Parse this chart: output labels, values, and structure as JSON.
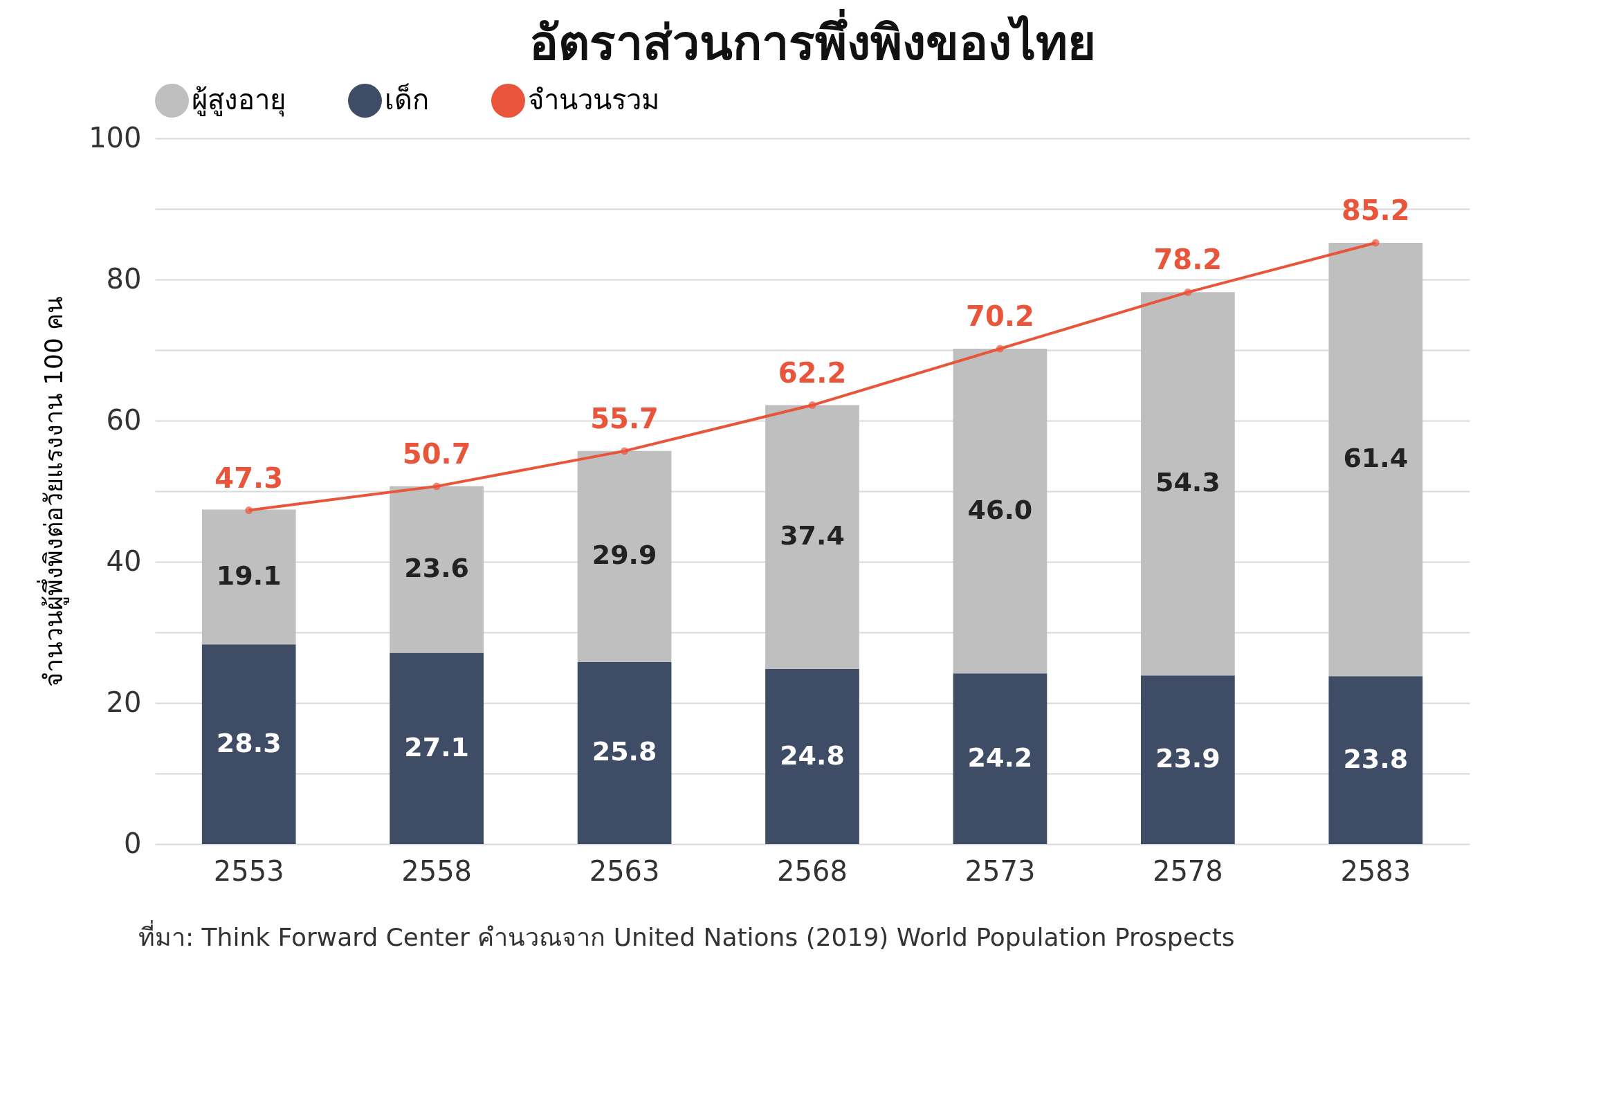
{
  "chart_data": {
    "type": "bar",
    "title": "อัตราส่วนการพึ่งพิงของไทย",
    "ylabel": "จำนวนผู้พึ่งพิงต่อวัยแรงงาน 100 คน",
    "categories": [
      "2553",
      "2558",
      "2563",
      "2568",
      "2573",
      "2578",
      "2583"
    ],
    "stacked": true,
    "series": [
      {
        "name": "เด็ก",
        "color": "#3e4c66",
        "values": [
          28.3,
          27.1,
          25.8,
          24.8,
          24.2,
          23.9,
          23.8
        ]
      },
      {
        "name": "ผู้สูงอายุ",
        "color": "#bfbfbf",
        "values": [
          19.1,
          23.6,
          29.9,
          37.4,
          46.0,
          54.3,
          61.4
        ],
        "value_labels": [
          "19.1",
          "23.6",
          "29.9",
          "37.4",
          "46.0",
          "54.3",
          "61.4"
        ]
      },
      {
        "name": "จำนวนรวม",
        "type": "line",
        "color": "#e9553a",
        "marker": "circle",
        "values": [
          47.3,
          50.7,
          55.7,
          62.2,
          70.2,
          78.2,
          85.2
        ]
      }
    ],
    "ylim": [
      0,
      100
    ],
    "yticks": [
      0,
      {
        "value": 10,
        "label": null
      },
      20,
      {
        "value": 30,
        "label": null
      },
      40,
      {
        "value": 50,
        "label": null
      },
      60,
      {
        "value": 70,
        "label": null
      },
      80,
      {
        "value": 90,
        "label": null
      },
      100
    ],
    "grid": "y",
    "legend": "top",
    "data_labels": true,
    "annotations": [
      "ที่มา: Think Forward Center คำนวณจาก United Nations (2019) World Population Prospects"
    ]
  }
}
